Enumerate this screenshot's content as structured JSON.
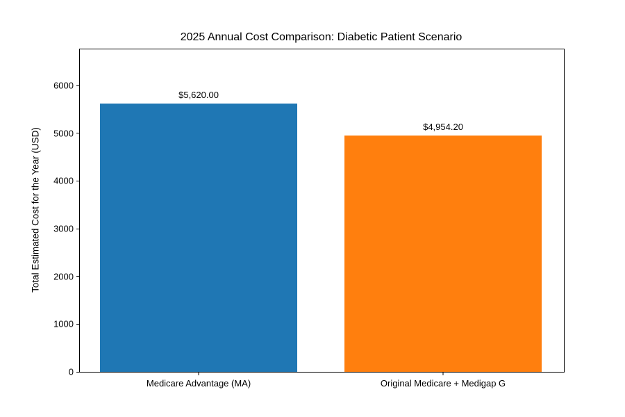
{
  "chart_data": {
    "type": "bar",
    "title": "2025 Annual Cost Comparison: Diabetic Patient Scenario",
    "xlabel": "",
    "ylabel": "Total Estimated Cost for the Year (USD)",
    "categories": [
      "Medicare Advantage (MA)",
      "Original Medicare + Medigap G"
    ],
    "values": [
      5620.0,
      4954.2
    ],
    "value_labels": [
      "$5,620.00",
      "$4,954.20"
    ],
    "bar_colors": [
      "#1f77b4",
      "#ff7f0e"
    ],
    "ylim": [
      0,
      6760
    ],
    "yticks": [
      0,
      1000,
      2000,
      3000,
      4000,
      5000,
      6000
    ],
    "grid": false,
    "legend": false,
    "background_color": "#ffffff",
    "frame_color": "#000000"
  }
}
